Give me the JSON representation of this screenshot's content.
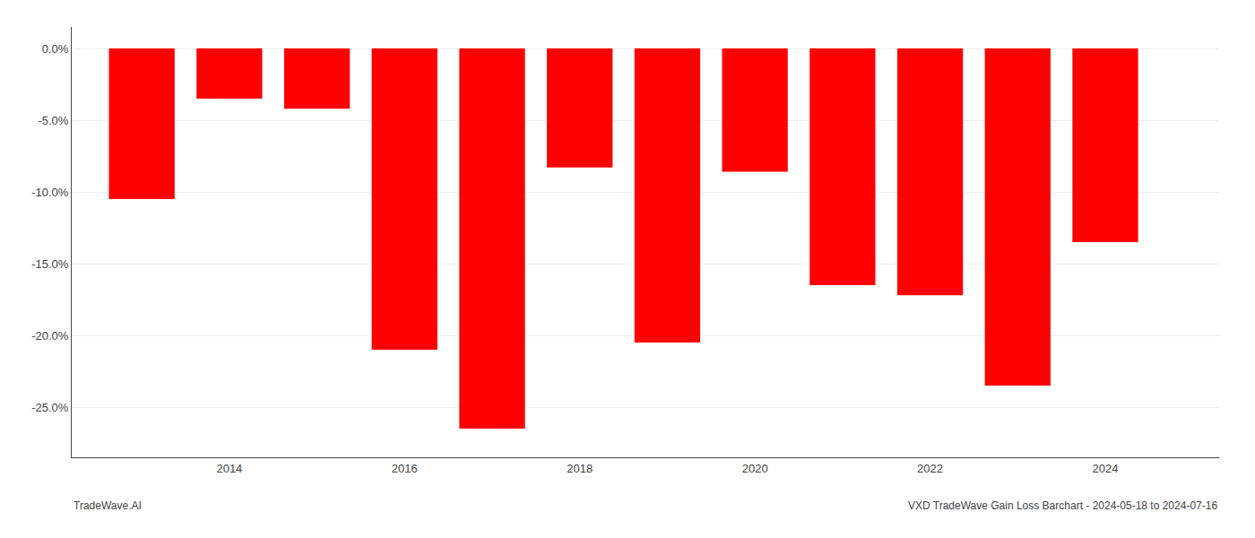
{
  "chart_data": {
    "type": "bar",
    "x": [
      2013,
      2014,
      2015,
      2016,
      2017,
      2018,
      2019,
      2020,
      2021,
      2022,
      2023,
      2024
    ],
    "values": [
      -10.5,
      -3.5,
      -4.2,
      -21.0,
      -26.5,
      -8.3,
      -20.5,
      -8.6,
      -16.5,
      -17.2,
      -23.5,
      -13.5
    ],
    "color": "#ff0000",
    "xlim": [
      2012.2,
      2025.3
    ],
    "xticks": [
      2014,
      2016,
      2018,
      2020,
      2022,
      2024
    ],
    "ylim": [
      -28.5,
      1.5
    ],
    "yticks": [
      {
        "value": 0.0,
        "label": "0.0%"
      },
      {
        "value": -5.0,
        "label": "-5.0%"
      },
      {
        "value": -10.0,
        "label": "-10.0%"
      },
      {
        "value": -15.0,
        "label": "-15.0%"
      },
      {
        "value": -20.0,
        "label": "-20.0%"
      },
      {
        "value": -25.0,
        "label": "-25.0%"
      }
    ],
    "grid": true,
    "annotations": [
      "TradeWave.AI",
      "VXD TradeWave Gain Loss Barchart - 2024-05-18 to 2024-07-16"
    ]
  }
}
